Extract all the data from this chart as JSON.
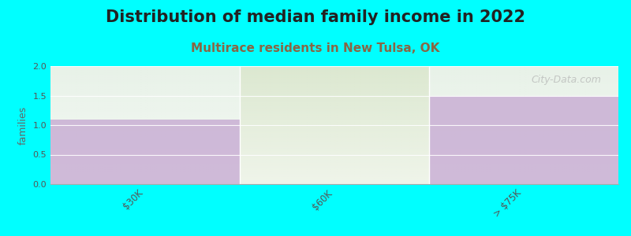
{
  "title": "Distribution of median family income in 2022",
  "subtitle": "Multirace residents in New Tulsa, OK",
  "categories": [
    "$30K",
    "$60K",
    "> $75K"
  ],
  "values": [
    1.1,
    0.0,
    1.5
  ],
  "bar_color": "#c9afd4",
  "bg_col0": "#e8f2e8",
  "bg_col1": "#dce8d0",
  "bg_col2": "#e8f2e8",
  "background_color": "#00ffff",
  "ylabel": "families",
  "ylim": [
    0,
    2
  ],
  "yticks": [
    0,
    0.5,
    1,
    1.5,
    2
  ],
  "title_fontsize": 15,
  "subtitle_fontsize": 11,
  "subtitle_color": "#888855",
  "watermark": "City-Data.com"
}
